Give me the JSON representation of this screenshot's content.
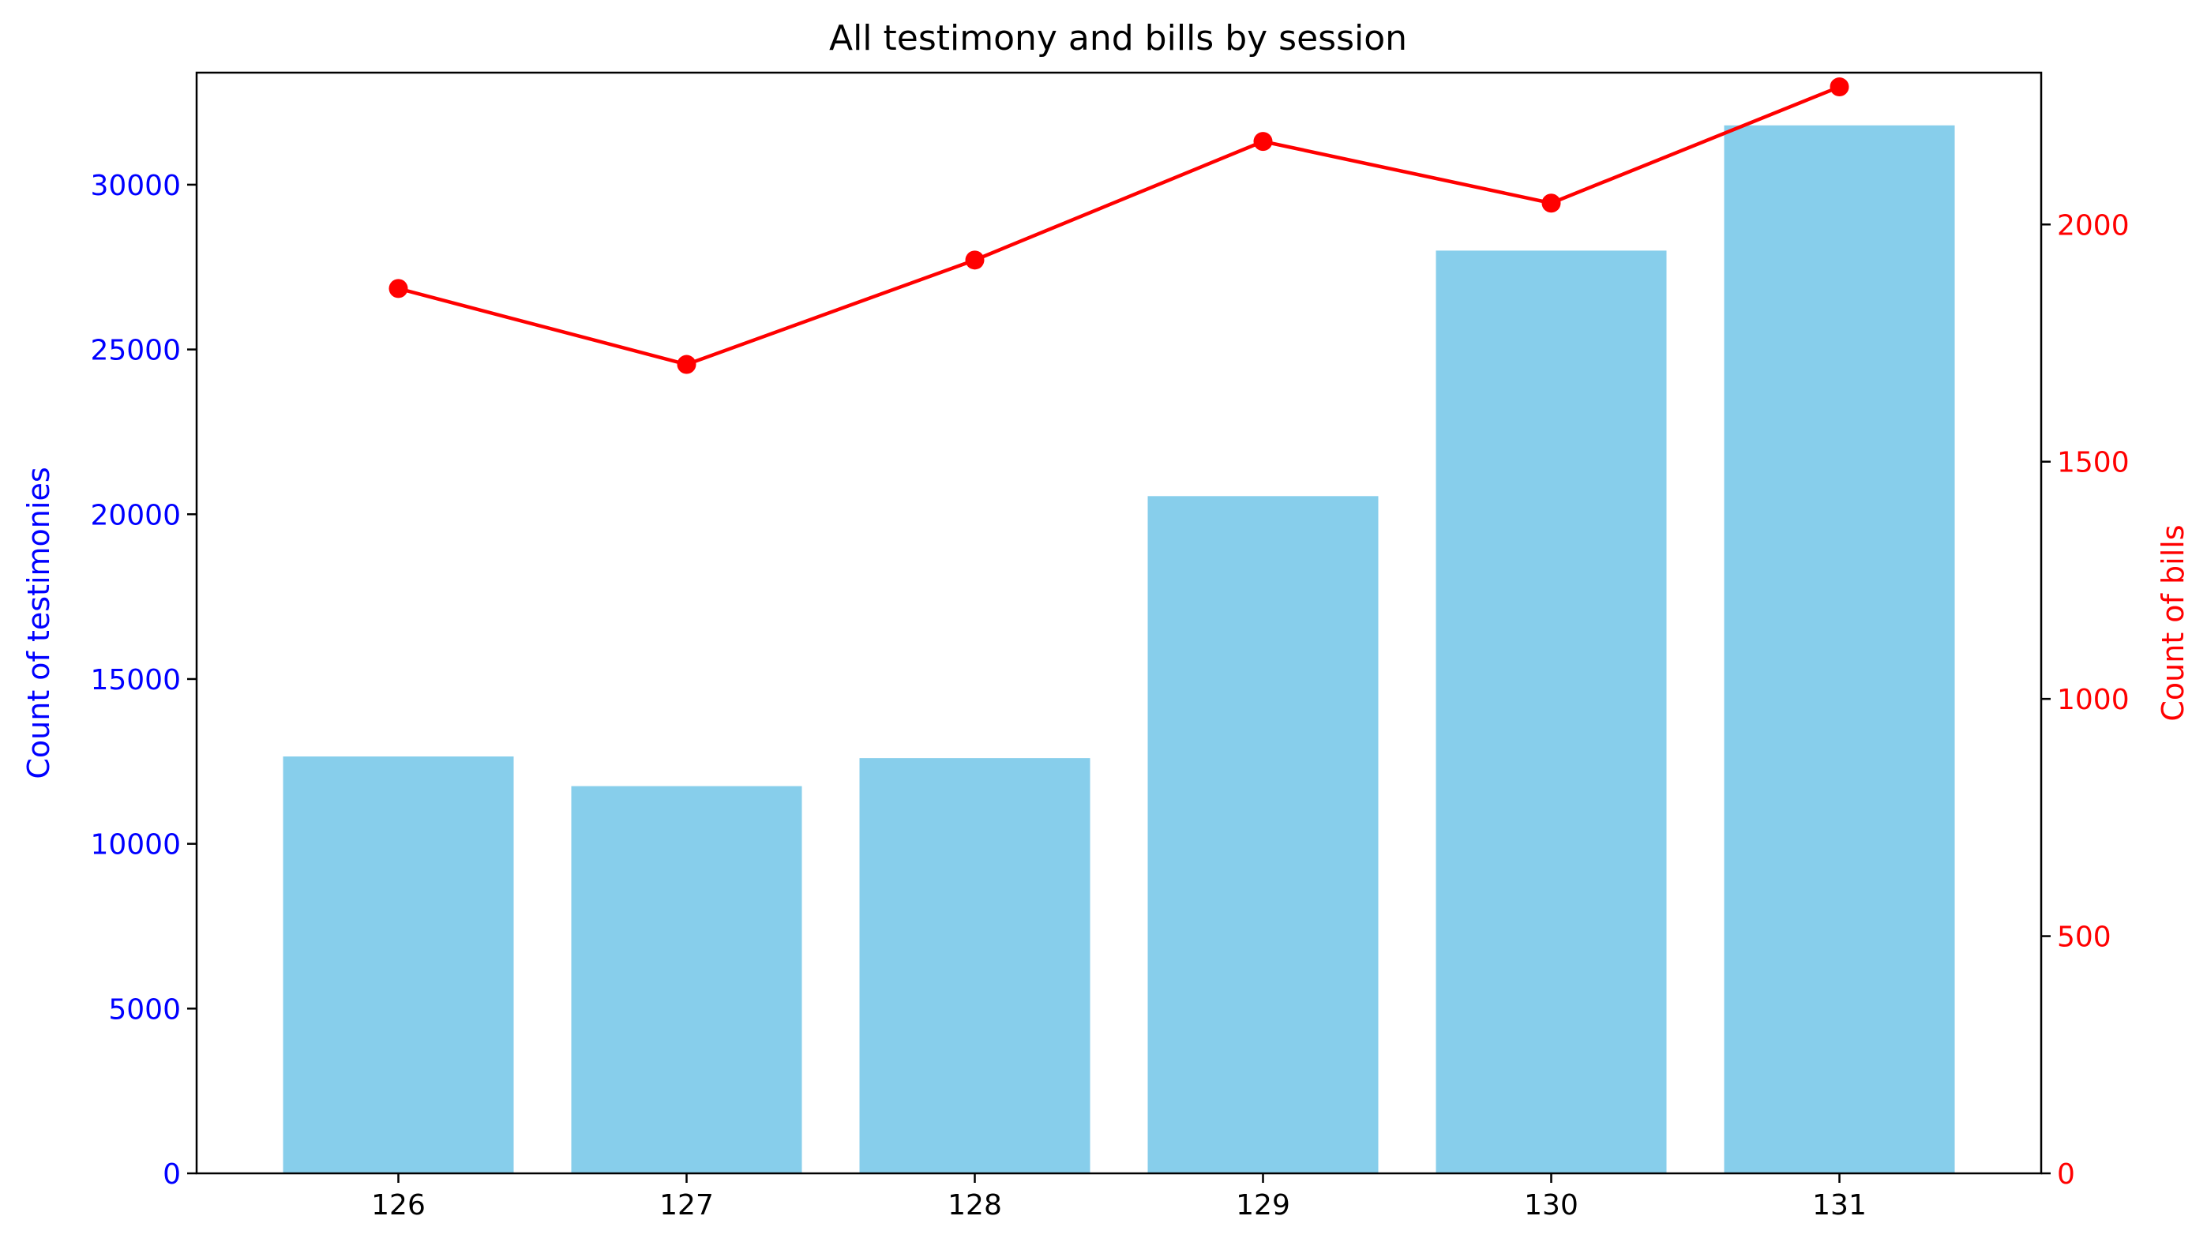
{
  "chart_data": {
    "type": "bar",
    "title": "All testimony and bills by session",
    "xlabel": "",
    "categories": [
      "126",
      "127",
      "128",
      "129",
      "130",
      "131"
    ],
    "ylabel_left": "Count of testimonies",
    "ylabel_right": "Count of bills",
    "ylim_left": [
      0,
      33400
    ],
    "ylim_right": [
      0,
      2320
    ],
    "yticks_left": [
      "0",
      "5000",
      "10000",
      "15000",
      "20000",
      "25000",
      "30000"
    ],
    "yticks_right": [
      "0",
      "500",
      "1000",
      "1500",
      "2000"
    ],
    "series": [
      {
        "type": "bar",
        "axis": "left",
        "color": "#87CEEB",
        "values": [
          12650,
          11750,
          12600,
          20550,
          28000,
          31800
        ]
      },
      {
        "type": "line",
        "axis": "right",
        "color": "#ff0000",
        "marker": "circle",
        "values": [
          1865,
          1705,
          1925,
          2175,
          2045,
          2290
        ]
      }
    ],
    "left_axis_color": "#0000ff",
    "right_axis_color": "#ff0000",
    "grid": false,
    "legend": "none"
  }
}
